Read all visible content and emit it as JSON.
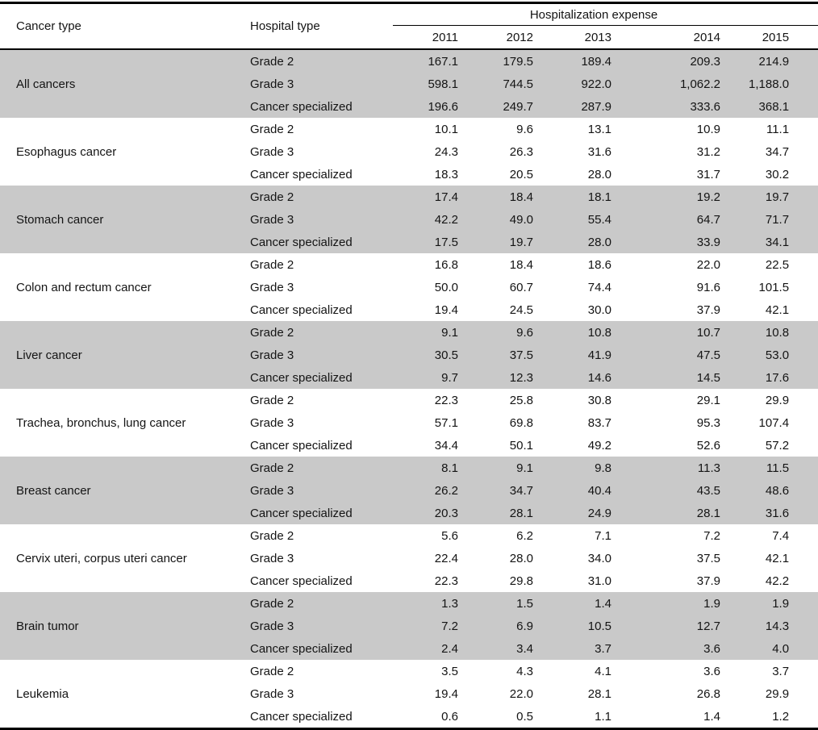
{
  "table": {
    "col1_header": "Cancer type",
    "col2_header": "Hospital type",
    "expense_header": "Hospitalization expense",
    "years": [
      "2011",
      "2012",
      "2013",
      "2014",
      "2015"
    ],
    "groups": [
      {
        "cancer": "All cancers",
        "shaded": true,
        "rows": [
          {
            "hospital": "Grade 2",
            "values": [
              "167.1",
              "179.5",
              "189.4",
              "209.3",
              "214.9"
            ]
          },
          {
            "hospital": "Grade 3",
            "values": [
              "598.1",
              "744.5",
              "922.0",
              "1,062.2",
              "1,188.0"
            ]
          },
          {
            "hospital": "Cancer specialized",
            "values": [
              "196.6",
              "249.7",
              "287.9",
              "333.6",
              "368.1"
            ]
          }
        ]
      },
      {
        "cancer": "Esophagus cancer",
        "shaded": false,
        "rows": [
          {
            "hospital": "Grade 2",
            "values": [
              "10.1",
              "9.6",
              "13.1",
              "10.9",
              "11.1"
            ]
          },
          {
            "hospital": "Grade 3",
            "values": [
              "24.3",
              "26.3",
              "31.6",
              "31.2",
              "34.7"
            ]
          },
          {
            "hospital": "Cancer specialized",
            "values": [
              "18.3",
              "20.5",
              "28.0",
              "31.7",
              "30.2"
            ]
          }
        ]
      },
      {
        "cancer": "Stomach cancer",
        "shaded": true,
        "rows": [
          {
            "hospital": "Grade 2",
            "values": [
              "17.4",
              "18.4",
              "18.1",
              "19.2",
              "19.7"
            ]
          },
          {
            "hospital": "Grade 3",
            "values": [
              "42.2",
              "49.0",
              "55.4",
              "64.7",
              "71.7"
            ]
          },
          {
            "hospital": "Cancer specialized",
            "values": [
              "17.5",
              "19.7",
              "28.0",
              "33.9",
              "34.1"
            ]
          }
        ]
      },
      {
        "cancer": "Colon and rectum cancer",
        "shaded": false,
        "rows": [
          {
            "hospital": "Grade 2",
            "values": [
              "16.8",
              "18.4",
              "18.6",
              "22.0",
              "22.5"
            ]
          },
          {
            "hospital": "Grade 3",
            "values": [
              "50.0",
              "60.7",
              "74.4",
              "91.6",
              "101.5"
            ]
          },
          {
            "hospital": "Cancer specialized",
            "values": [
              "19.4",
              "24.5",
              "30.0",
              "37.9",
              "42.1"
            ]
          }
        ]
      },
      {
        "cancer": "Liver cancer",
        "shaded": true,
        "rows": [
          {
            "hospital": "Grade 2",
            "values": [
              "9.1",
              "9.6",
              "10.8",
              "10.7",
              "10.8"
            ]
          },
          {
            "hospital": "Grade 3",
            "values": [
              "30.5",
              "37.5",
              "41.9",
              "47.5",
              "53.0"
            ]
          },
          {
            "hospital": "Cancer specialized",
            "values": [
              "9.7",
              "12.3",
              "14.6",
              "14.5",
              "17.6"
            ]
          }
        ]
      },
      {
        "cancer": "Trachea, bronchus, lung cancer",
        "shaded": false,
        "rows": [
          {
            "hospital": "Grade 2",
            "values": [
              "22.3",
              "25.8",
              "30.8",
              "29.1",
              "29.9"
            ]
          },
          {
            "hospital": "Grade 3",
            "values": [
              "57.1",
              "69.8",
              "83.7",
              "95.3",
              "107.4"
            ]
          },
          {
            "hospital": "Cancer specialized",
            "values": [
              "34.4",
              "50.1",
              "49.2",
              "52.6",
              "57.2"
            ]
          }
        ]
      },
      {
        "cancer": "Breast cancer",
        "shaded": true,
        "rows": [
          {
            "hospital": "Grade 2",
            "values": [
              "8.1",
              "9.1",
              "9.8",
              "11.3",
              "11.5"
            ]
          },
          {
            "hospital": "Grade 3",
            "values": [
              "26.2",
              "34.7",
              "40.4",
              "43.5",
              "48.6"
            ]
          },
          {
            "hospital": "Cancer specialized",
            "values": [
              "20.3",
              "28.1",
              "24.9",
              "28.1",
              "31.6"
            ]
          }
        ]
      },
      {
        "cancer": "Cervix uteri, corpus uteri cancer",
        "shaded": false,
        "rows": [
          {
            "hospital": "Grade 2",
            "values": [
              "5.6",
              "6.2",
              "7.1",
              "7.2",
              "7.4"
            ]
          },
          {
            "hospital": "Grade 3",
            "values": [
              "22.4",
              "28.0",
              "34.0",
              "37.5",
              "42.1"
            ]
          },
          {
            "hospital": "Cancer specialized",
            "values": [
              "22.3",
              "29.8",
              "31.0",
              "37.9",
              "42.2"
            ]
          }
        ]
      },
      {
        "cancer": "Brain tumor",
        "shaded": true,
        "rows": [
          {
            "hospital": "Grade 2",
            "values": [
              "1.3",
              "1.5",
              "1.4",
              "1.9",
              "1.9"
            ]
          },
          {
            "hospital": "Grade 3",
            "values": [
              "7.2",
              "6.9",
              "10.5",
              "12.7",
              "14.3"
            ]
          },
          {
            "hospital": "Cancer specialized",
            "values": [
              "2.4",
              "3.4",
              "3.7",
              "3.6",
              "4.0"
            ]
          }
        ]
      },
      {
        "cancer": "Leukemia",
        "shaded": false,
        "rows": [
          {
            "hospital": "Grade 2",
            "values": [
              "3.5",
              "4.3",
              "4.1",
              "3.6",
              "3.7"
            ]
          },
          {
            "hospital": "Grade 3",
            "values": [
              "19.4",
              "22.0",
              "28.1",
              "26.8",
              "29.9"
            ]
          },
          {
            "hospital": "Cancer specialized",
            "values": [
              "0.6",
              "0.5",
              "1.1",
              "1.4",
              "1.2"
            ]
          }
        ]
      }
    ],
    "colors": {
      "group_shading": "#c9c9c9",
      "rule": "#000000",
      "text": "#141414"
    }
  }
}
